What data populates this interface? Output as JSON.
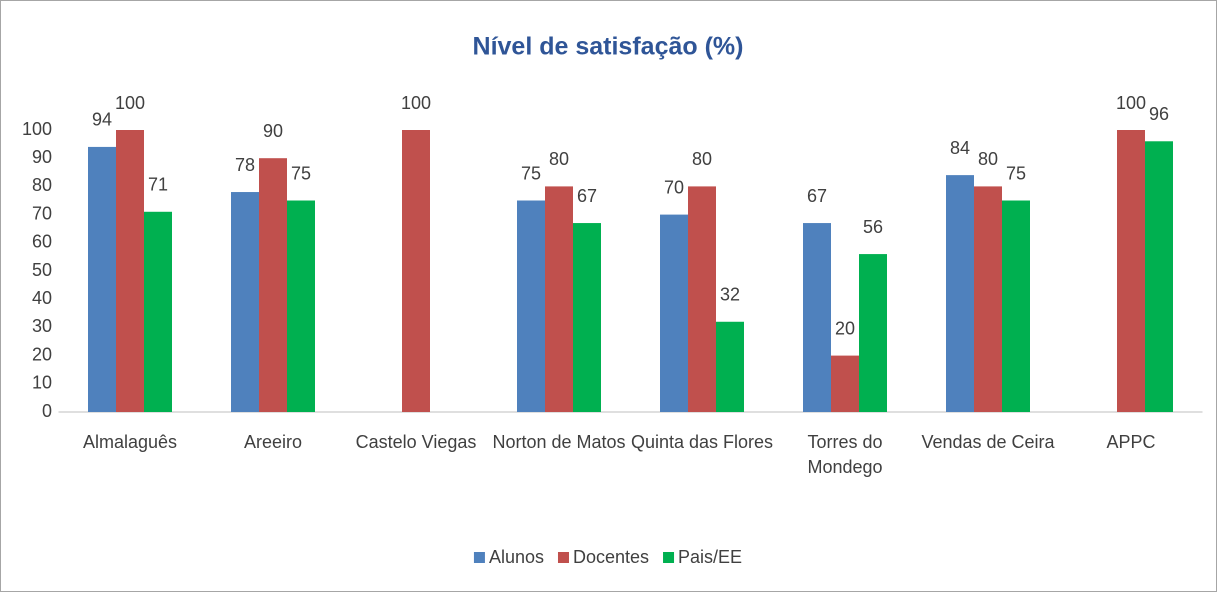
{
  "chart_data": {
    "type": "bar",
    "title": "Nível de satisfação (%)",
    "categories": [
      "Almalaguês",
      "Areeiro",
      "Castelo Viegas",
      "Norton de Matos",
      "Quinta das Flores",
      "Torres do Mondego",
      "Vendas de Ceira",
      "APPC"
    ],
    "series": [
      {
        "name": "Alunos",
        "color": "#4f81bd",
        "values": [
          94,
          78,
          null,
          75,
          70,
          67,
          84,
          null
        ]
      },
      {
        "name": "Docentes",
        "color": "#c0504d",
        "values": [
          100,
          90,
          100,
          80,
          80,
          20,
          80,
          100
        ]
      },
      {
        "name": "Pais/EE",
        "color": "#00b050",
        "values": [
          71,
          75,
          null,
          67,
          32,
          56,
          75,
          96
        ]
      }
    ],
    "ylim": [
      0,
      100
    ],
    "yticks": [
      0,
      10,
      20,
      30,
      40,
      50,
      60,
      70,
      80,
      90,
      100
    ],
    "grid": false,
    "legend": "bottom"
  }
}
